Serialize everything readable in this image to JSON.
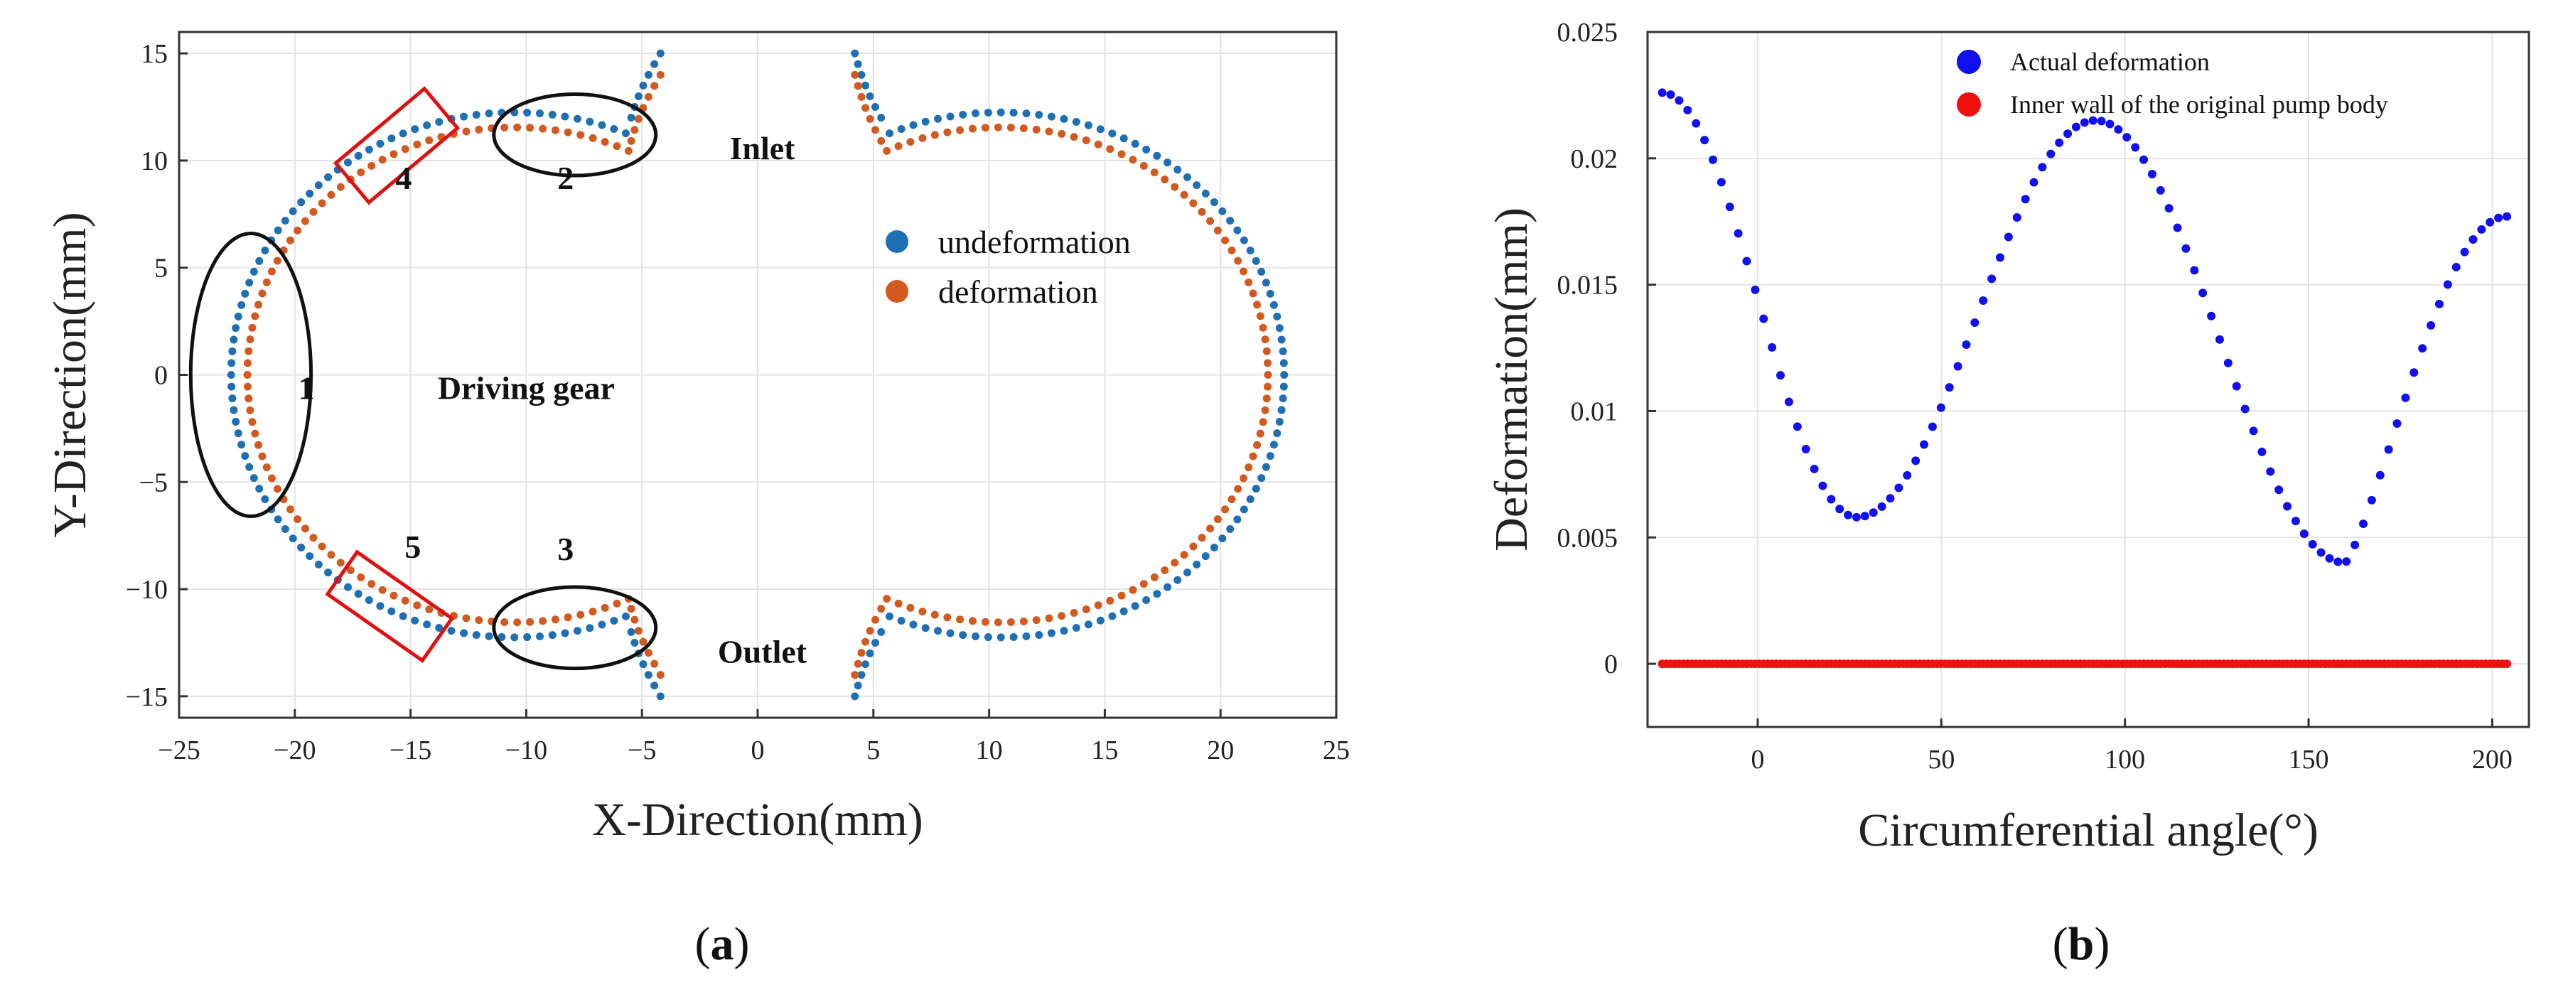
{
  "chart_data": [
    {
      "id": "a",
      "type": "scatter",
      "caption_letter": "a",
      "xlabel": "X-Direction(mm)",
      "ylabel": "Y-Direction(mm)",
      "xlim": [
        -25,
        25
      ],
      "ylim": [
        -16,
        16
      ],
      "xticks": [
        -25,
        -20,
        -15,
        -10,
        -5,
        0,
        5,
        10,
        15,
        20,
        25
      ],
      "yticks": [
        -15,
        -10,
        -5,
        0,
        5,
        10,
        15
      ],
      "xtick_labels": [
        "−25",
        "−20",
        "−15",
        "−10",
        "−5",
        "0",
        "5",
        "10",
        "15",
        "20",
        "25"
      ],
      "ytick_labels": [
        "−15",
        "−10",
        "−5",
        "0",
        "5",
        "10",
        "15"
      ],
      "grid": true,
      "legend_position": "right",
      "series": [
        {
          "name": "undeformation",
          "color": "#1f6fb4",
          "geometry": {
            "circle_radius": 12.25,
            "left_center_x": -10.5,
            "right_center_x": 10.5,
            "cusp": [
              -5.6,
              11.5
            ],
            "tip": [
              -4.2,
              15.0
            ],
            "point_spacing_mm": 0.55
          }
        },
        {
          "name": "deformation",
          "color": "#d35a1f",
          "geometry": {
            "circle_radius": 11.55,
            "left_center_x": -10.5,
            "right_center_x": 10.5,
            "cusp": [
              -5.6,
              10.4
            ],
            "tip": [
              -4.2,
              14.0
            ],
            "point_spacing_mm": 0.55
          }
        }
      ],
      "annotations": [
        {
          "label": "1",
          "x": -19.5,
          "y": -0.6
        },
        {
          "label": "2",
          "x": -8.3,
          "y": 9.2
        },
        {
          "label": "3",
          "x": -8.3,
          "y": -8.1
        },
        {
          "label": "4",
          "x": -15.3,
          "y": 9.2
        },
        {
          "label": "5",
          "x": -14.9,
          "y": -8.0
        },
        {
          "label": "Inlet",
          "x": 0.2,
          "y": 10.6
        },
        {
          "label": "Outlet",
          "x": 0.2,
          "y": -12.9
        },
        {
          "label": "Driving gear",
          "x": -10.0,
          "y": -0.6
        }
      ],
      "ellipses": [
        {
          "name": "region-1",
          "cx": -21.9,
          "cy": 0,
          "rx": 2.6,
          "ry": 6.6
        },
        {
          "name": "region-2",
          "cx": -7.9,
          "cy": 11.2,
          "rx": 3.5,
          "ry": 1.9
        },
        {
          "name": "region-3",
          "cx": -7.9,
          "cy": -11.8,
          "rx": 3.5,
          "ry": 1.9
        }
      ],
      "rects": [
        {
          "name": "region-4",
          "cx": -15.6,
          "cy": 10.7,
          "w": 5.0,
          "h": 2.4,
          "angle_deg": -40
        },
        {
          "name": "region-5",
          "cx": -15.9,
          "cy": -10.8,
          "w": 5.0,
          "h": 2.4,
          "angle_deg": 35
        }
      ]
    },
    {
      "id": "b",
      "type": "scatter",
      "caption_letter": "b",
      "xlabel": "Circumferential angle(°)",
      "ylabel": "Deformation(mm)",
      "xlim": [
        -30,
        210
      ],
      "ylim": [
        -0.0025,
        0.025
      ],
      "xticks": [
        0,
        50,
        100,
        150,
        200
      ],
      "yticks": [
        0,
        0.005,
        0.01,
        0.015,
        0.02,
        0.025
      ],
      "xtick_labels": [
        "0",
        "50",
        "100",
        "150",
        "200"
      ],
      "ytick_labels": [
        "0",
        "0.005",
        "0.01",
        "0.015",
        "0.02",
        "0.025"
      ],
      "grid": true,
      "legend_position": "top",
      "series": [
        {
          "name": "Actual deformation",
          "color": "#1010f0",
          "x_start": -26,
          "x_step": 2.3,
          "count": 101,
          "shape": {
            "start_value": 0.0226,
            "min1": [
              27,
              0.0058
            ],
            "max": [
              92,
              0.0215
            ],
            "min2": [
              160,
              0.004
            ],
            "end_value": 0.0177,
            "end_x": 204
          }
        },
        {
          "name": "Inner wall of the original pump body",
          "color": "#f01010",
          "x_start": -26,
          "x_step": 1.15,
          "count": 201,
          "value": 0
        }
      ]
    }
  ],
  "captions": {
    "a": {
      "open": "(",
      "letter": "a",
      "close": ")"
    },
    "b": {
      "open": "(",
      "letter": "b",
      "close": ")"
    }
  }
}
